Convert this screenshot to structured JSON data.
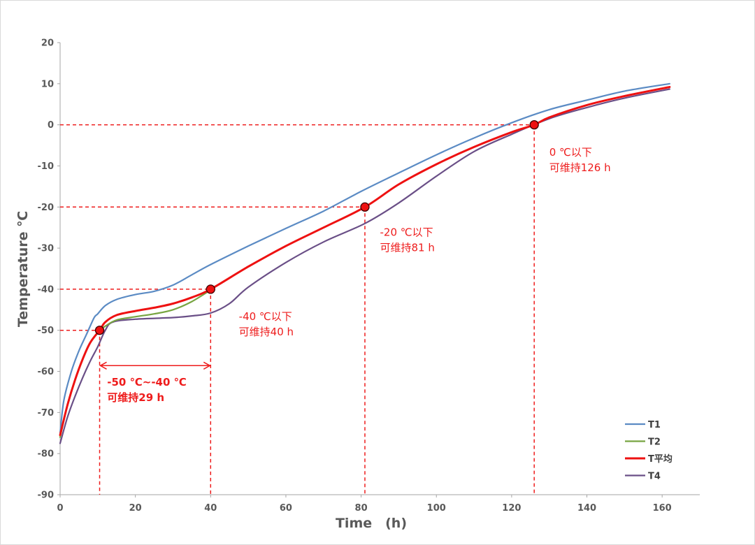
{
  "chart_data": {
    "type": "line",
    "xlabel": "Time　(h)",
    "ylabel": "Temperature ℃",
    "xlim": [
      0,
      170
    ],
    "ylim": [
      -90,
      20
    ],
    "x_ticks": [
      "0",
      "20",
      "40",
      "60",
      "80",
      "100",
      "120",
      "140",
      "160"
    ],
    "y_ticks": [
      "20",
      "10",
      "0",
      "-10",
      "-20",
      "-30",
      "-40",
      "-50",
      "-60",
      "-70",
      "-80",
      "-90"
    ],
    "grid": false,
    "legend": "bottom-right",
    "series": [
      {
        "name": "T1",
        "color": "#5b8bc4",
        "points": [
          [
            0,
            -75
          ],
          [
            1,
            -67
          ],
          [
            3,
            -60
          ],
          [
            5,
            -55
          ],
          [
            7,
            -51
          ],
          [
            9,
            -47
          ],
          [
            10,
            -46
          ],
          [
            12,
            -44
          ],
          [
            15,
            -42.5
          ],
          [
            20,
            -41.3
          ],
          [
            25,
            -40.5
          ],
          [
            30,
            -39
          ],
          [
            35,
            -36.5
          ],
          [
            40,
            -34
          ],
          [
            50,
            -29.5
          ],
          [
            60,
            -25.2
          ],
          [
            70,
            -21
          ],
          [
            80,
            -16.2
          ],
          [
            90,
            -11.7
          ],
          [
            100,
            -7.3
          ],
          [
            110,
            -3.2
          ],
          [
            120,
            0.5
          ],
          [
            130,
            3.7
          ],
          [
            140,
            6
          ],
          [
            150,
            8.2
          ],
          [
            162,
            10
          ]
        ]
      },
      {
        "name": "T2",
        "color": "#77a541",
        "points": [
          [
            0,
            -76
          ],
          [
            2,
            -68
          ],
          [
            4,
            -62
          ],
          [
            6,
            -57
          ],
          [
            8,
            -53
          ],
          [
            10,
            -50.5
          ],
          [
            12,
            -49
          ],
          [
            15,
            -47.5
          ],
          [
            20,
            -46.7
          ],
          [
            25,
            -46
          ],
          [
            30,
            -45
          ],
          [
            35,
            -43
          ],
          [
            40,
            -40.2
          ]
        ]
      },
      {
        "name": "T平均",
        "color": "#ee1111",
        "points": [
          [
            0,
            -75.5
          ],
          [
            2,
            -68
          ],
          [
            4,
            -62
          ],
          [
            6,
            -57
          ],
          [
            8,
            -53
          ],
          [
            10.5,
            -50
          ],
          [
            12,
            -48
          ],
          [
            15,
            -46.3
          ],
          [
            20,
            -45.3
          ],
          [
            25,
            -44.5
          ],
          [
            30,
            -43.5
          ],
          [
            35,
            -42
          ],
          [
            40,
            -40
          ],
          [
            50,
            -34.5
          ],
          [
            60,
            -29.5
          ],
          [
            70,
            -25
          ],
          [
            81,
            -20
          ],
          [
            90,
            -14.5
          ],
          [
            100,
            -9.6
          ],
          [
            110,
            -5.4
          ],
          [
            120,
            -1.8
          ],
          [
            126,
            0
          ],
          [
            130,
            1.8
          ],
          [
            140,
            4.8
          ],
          [
            150,
            7
          ],
          [
            162,
            9.2
          ]
        ]
      },
      {
        "name": "T4",
        "color": "#6a4f87",
        "points": [
          [
            0,
            -77.5
          ],
          [
            2,
            -71
          ],
          [
            4,
            -66
          ],
          [
            6,
            -61.5
          ],
          [
            8,
            -57.5
          ],
          [
            10,
            -54
          ],
          [
            12,
            -50
          ],
          [
            14,
            -48
          ],
          [
            20,
            -47.3
          ],
          [
            30,
            -46.9
          ],
          [
            35,
            -46.5
          ],
          [
            40,
            -45.8
          ],
          [
            45,
            -43.5
          ],
          [
            50,
            -39.5
          ],
          [
            60,
            -33.5
          ],
          [
            70,
            -28.5
          ],
          [
            81,
            -24
          ],
          [
            90,
            -19
          ],
          [
            100,
            -12.5
          ],
          [
            110,
            -6.5
          ],
          [
            120,
            -2.3
          ],
          [
            130,
            1.5
          ],
          [
            140,
            4.2
          ],
          [
            150,
            6.5
          ],
          [
            162,
            8.7
          ]
        ]
      }
    ],
    "markers": [
      [
        10.5,
        -50
      ],
      [
        40,
        -40
      ],
      [
        81,
        -20
      ],
      [
        126,
        0
      ]
    ],
    "reference_lines": {
      "color": "#ee1c1c",
      "horizontal": [
        [
          10.5,
          -50
        ],
        [
          40,
          -40
        ],
        [
          81,
          -20
        ],
        [
          126,
          0
        ]
      ],
      "vertical": [
        [
          10.5,
          -50
        ],
        [
          40,
          -40
        ],
        [
          81,
          -20
        ],
        [
          126,
          0
        ]
      ]
    },
    "span_arrow": {
      "from": 10.5,
      "to": 40,
      "y": -58.6
    },
    "annotations": [
      {
        "lines": [
          "0 ℃以下",
          "可维持126 h"
        ],
        "x": 130,
        "y": -7.5,
        "bold": false
      },
      {
        "lines": [
          "-20 ℃以下",
          "可维持81 h"
        ],
        "x": 85,
        "y": -27,
        "bold": false
      },
      {
        "lines": [
          "-40 ℃以下",
          "可维持40 h"
        ],
        "x": 47.5,
        "y": -47.5,
        "bold": false
      },
      {
        "lines": [
          "-50 ℃~-40 ℃",
          "可维持29 h"
        ],
        "x": 12.5,
        "y": -63.5,
        "bold": true
      }
    ]
  }
}
